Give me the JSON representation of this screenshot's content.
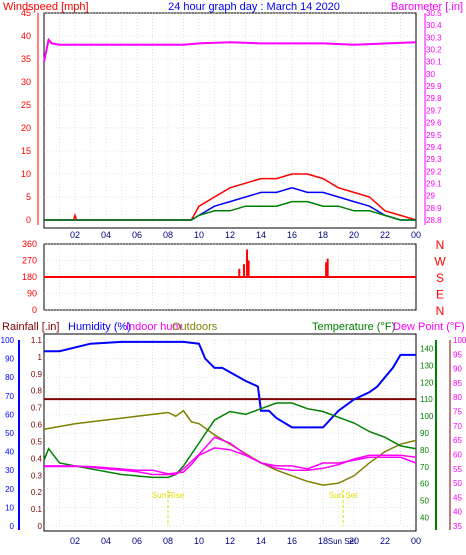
{
  "header": {
    "left": "Windspeed [mph]",
    "center": "24 hour graph day : March 14 2020",
    "right": "Barometer [.in]"
  },
  "colors": {
    "wind": "#ff0000",
    "gust": "#0000ff",
    "windAvg": "#008000",
    "baro": "#ff00ff",
    "dir": "#ff0000",
    "rain": "#7f0000",
    "humidity": "#0000ff",
    "indoor": "#ff00ff",
    "outdoor": "#808000",
    "temperature": "#008000",
    "dewpoint": "#ff00ff",
    "sun": "#e0e000",
    "grid": "#c8c8c8"
  },
  "xticks": [
    "02",
    "04",
    "06",
    "08",
    "10",
    "12",
    "14",
    "16",
    "18",
    "20",
    "22",
    "00"
  ],
  "sun_labels": {
    "sunrise": "Sun Rise",
    "sunset": "Sun Set",
    "midnight": "Sun Set"
  },
  "chart_data": [
    {
      "type": "line",
      "title": "24 hour graph day : March 14 2020",
      "ylabel": "Windspeed [mph]",
      "ylabel2": "Barometer [.in]",
      "x_label_hours": [
        2,
        4,
        6,
        8,
        10,
        12,
        14,
        16,
        18,
        20,
        22,
        24
      ],
      "ylim": [
        0,
        45
      ],
      "yticks": [
        0,
        5,
        10,
        15,
        20,
        25,
        30,
        35,
        40,
        45
      ],
      "ylim2": [
        28.8,
        30.5
      ],
      "yticks2": [
        "28.8",
        "28.9",
        "29",
        "29.1",
        "29.2",
        "29.3",
        "29.4",
        "29.5",
        "29.6",
        "29.7",
        "29.8",
        "29.9",
        "30",
        "30.1",
        "30.2",
        "30.3",
        "30.4",
        "30.5"
      ],
      "series": [
        {
          "key": "gust",
          "color_key": "wind",
          "x": [
            0,
            1.9,
            2.0,
            2.1,
            9.5,
            10,
            11,
            12,
            13,
            14,
            15,
            16,
            17,
            18,
            19,
            20,
            21,
            22,
            23,
            24
          ],
          "y": [
            0,
            0,
            1,
            0,
            0,
            3,
            5,
            7,
            8,
            9,
            9,
            10,
            10,
            9,
            7,
            6,
            5,
            2,
            1,
            0
          ]
        },
        {
          "key": "speed",
          "color_key": "gust",
          "x": [
            0,
            9.5,
            10,
            11,
            12,
            13,
            14,
            15,
            16,
            17,
            18,
            19,
            20,
            21,
            22,
            23,
            24
          ],
          "y": [
            0,
            0,
            1,
            3,
            4,
            5,
            6,
            6,
            7,
            6,
            6,
            5,
            4,
            3,
            1,
            0,
            0
          ]
        },
        {
          "key": "avg",
          "color_key": "windAvg",
          "x": [
            0,
            9.5,
            10,
            11,
            12,
            13,
            14,
            15,
            16,
            17,
            18,
            19,
            20,
            21,
            22,
            23,
            24
          ],
          "y": [
            0,
            0,
            1,
            2,
            2,
            3,
            3,
            3,
            4,
            4,
            3,
            3,
            2,
            2,
            1,
            0,
            0
          ]
        },
        {
          "key": "barometer",
          "color_key": "baro",
          "axis": "right",
          "x": [
            0,
            0.3,
            0.5,
            1,
            3,
            6,
            9,
            10,
            12,
            14,
            18,
            20,
            24
          ],
          "y": [
            30.1,
            30.28,
            30.25,
            30.24,
            30.24,
            30.24,
            30.24,
            30.25,
            30.26,
            30.25,
            30.25,
            30.24,
            30.26
          ]
        }
      ]
    },
    {
      "type": "scatter",
      "ylabel": "Wind direction",
      "ylim": [
        0,
        360
      ],
      "yticks": [
        0,
        90,
        180,
        270,
        360
      ],
      "compass_labels": [
        "N",
        "W",
        "S",
        "E",
        "N"
      ],
      "baseline": 180,
      "spikes": [
        {
          "x": 12.6,
          "y": 225
        },
        {
          "x": 12.9,
          "y": 250
        },
        {
          "x": 13.1,
          "y": 330
        },
        {
          "x": 13.2,
          "y": 270
        },
        {
          "x": 18.2,
          "y": 260
        },
        {
          "x": 18.3,
          "y": 280
        }
      ]
    },
    {
      "type": "line",
      "legend": [
        "Rainfall [.in]",
        "Humidity (%)",
        "Indoor hum",
        "Outdoors",
        "Temperature (°F)",
        "Dew Point (°F)"
      ],
      "legend_text": {
        "rain": "Rainfall [.in]",
        "humidity": "Humidity (%)",
        "indoor": "Indoor hum",
        "outdoors": "Outdoors",
        "temp": "Temperature (°F)",
        "dew": "Dew Point (°F)"
      },
      "yticks_humidity": [
        0,
        10,
        20,
        30,
        40,
        50,
        60,
        70,
        80,
        90,
        100
      ],
      "yticks_rain": [
        "0",
        "0.1",
        "0.2",
        "0.3",
        "0.4",
        "0.5",
        "0.6",
        "0.7",
        "0.8",
        "0.9",
        "1",
        "1.1"
      ],
      "yticks_temp": [
        35,
        40,
        45,
        50,
        55,
        60,
        65,
        70,
        75,
        80,
        85,
        90,
        95,
        100
      ],
      "yticks_temp_right": [
        40,
        50,
        60,
        70,
        80,
        90,
        100,
        110,
        120,
        130,
        140
      ],
      "rainfall": 0.75,
      "humidity": {
        "x": [
          0,
          1,
          3,
          5,
          7,
          9,
          10,
          10.4,
          11,
          11.5,
          13,
          13.8,
          14,
          14.5,
          15,
          16,
          17,
          18,
          19,
          20,
          21,
          21.5,
          22,
          22.5,
          23,
          24
        ],
        "y": [
          94,
          94,
          98,
          99,
          99,
          99,
          98,
          90,
          85,
          85,
          78,
          75,
          62,
          62,
          58,
          53,
          53,
          53,
          62,
          68,
          72,
          75,
          80,
          85,
          92,
          92
        ]
      },
      "indoor_humidity": {
        "x": [
          0,
          3,
          6,
          7,
          8,
          9,
          9.5,
          10,
          11,
          12,
          13,
          14,
          15,
          16,
          17,
          18,
          19,
          20,
          21,
          22,
          23,
          24
        ],
        "y": [
          32,
          32,
          30,
          30,
          28,
          29,
          33,
          38,
          42,
          41,
          38,
          34,
          31,
          30,
          30,
          31,
          33,
          36,
          38,
          38,
          38,
          37
        ]
      },
      "outdoor_humidity": {
        "x": [
          0,
          2,
          4,
          6,
          7,
          8,
          8.5,
          9,
          9.5,
          10,
          11,
          12,
          13,
          14,
          15,
          16,
          17,
          18,
          19,
          20,
          21,
          22,
          23,
          24
        ],
        "y": [
          52,
          55,
          57,
          59,
          60,
          61,
          59,
          62,
          56,
          55,
          49,
          44,
          39,
          34,
          30,
          27,
          24,
          22,
          23,
          27,
          34,
          40,
          44,
          46
        ]
      },
      "temperature": {
        "x": [
          0,
          0.3,
          1,
          3,
          5,
          7,
          8,
          8.5,
          9,
          10,
          11,
          12,
          13,
          14,
          15,
          16,
          17,
          18,
          19,
          20,
          21,
          22,
          23,
          24
        ],
        "y": [
          58,
          62,
          57,
          55,
          53,
          52,
          52,
          53,
          56,
          64,
          72,
          75,
          74,
          76,
          78,
          78,
          76,
          75,
          73,
          71,
          68,
          66,
          63,
          62
        ]
      },
      "dew_point": {
        "x": [
          0,
          2,
          4,
          6,
          7,
          8,
          8.5,
          9,
          10,
          11,
          12,
          13,
          14,
          15,
          16,
          17,
          18,
          19,
          20,
          21,
          22,
          23,
          24
        ],
        "y": [
          56,
          56,
          55,
          54,
          53,
          53,
          53,
          55,
          60,
          66,
          64,
          60,
          57,
          56,
          56,
          55,
          57,
          57,
          58,
          59,
          59,
          59,
          57
        ]
      },
      "sunrise_hour": 8,
      "sunset_hour": 19.3
    }
  ]
}
